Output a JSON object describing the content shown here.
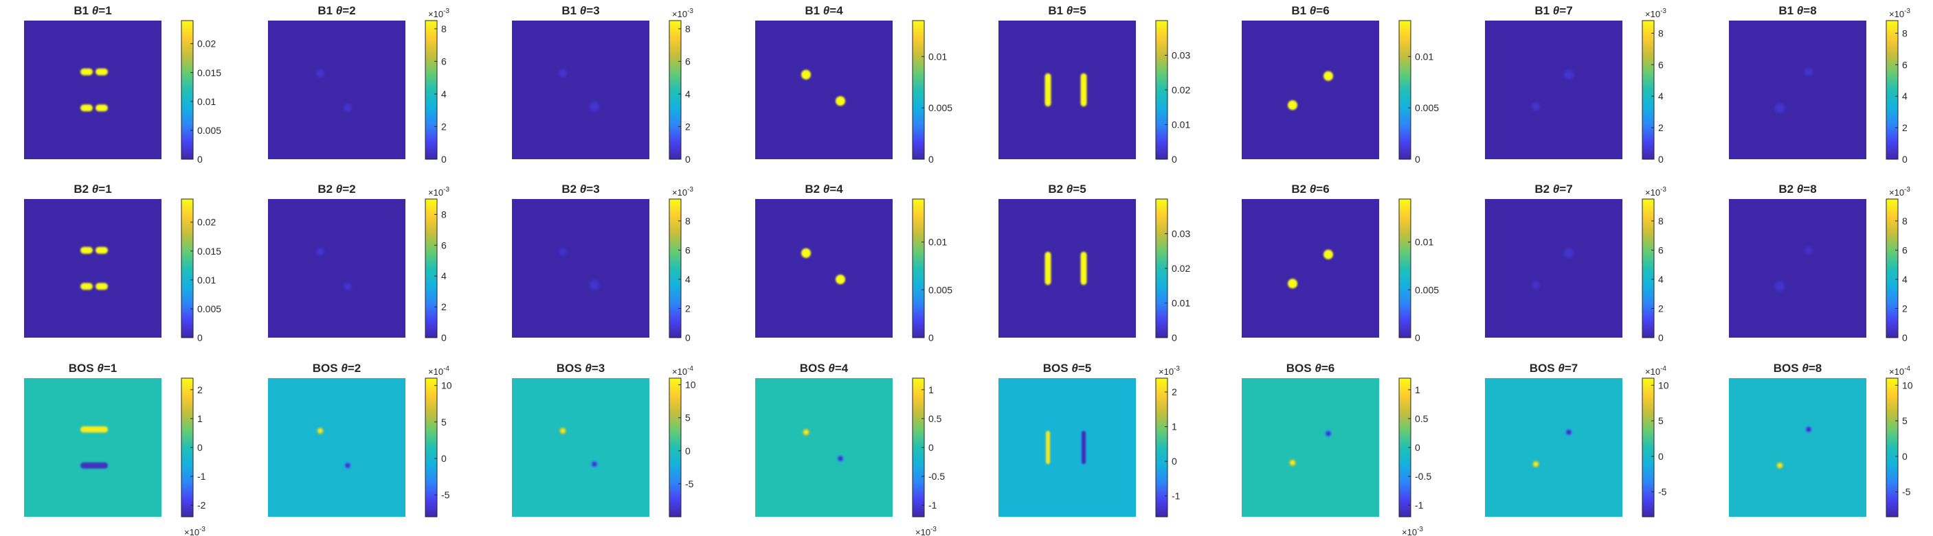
{
  "figure": {
    "colormap": "parula",
    "colormap_stops": [
      "#3E26A8",
      "#4743F3",
      "#2D87F7",
      "#14B1DF",
      "#22C0B3",
      "#6ACB70",
      "#C5BE3B",
      "#FCCC2F",
      "#F9FB15"
    ]
  },
  "chart_data": [
    {
      "type": "heatmap",
      "row": "B1",
      "col": 1,
      "title_prefix": "B1",
      "theta": "=1",
      "clim": [
        0,
        0.024
      ],
      "cticks": [
        "0",
        "0.005",
        "0.01",
        "0.015",
        "0.02"
      ],
      "ctick_values": [
        0,
        0.005,
        0.01,
        0.015,
        0.02
      ],
      "exponent": "",
      "exponent_pos": "top",
      "background_level": 0,
      "features": [
        {
          "kind": "hbar",
          "cx": 0.51,
          "cy": 0.37,
          "w": 0.2,
          "h": 0.05,
          "level": 0.75,
          "segments": 2
        },
        {
          "kind": "hbar",
          "cx": 0.51,
          "cy": 0.63,
          "w": 0.2,
          "h": 0.05,
          "level": 0.75,
          "segments": 2
        }
      ]
    },
    {
      "type": "heatmap",
      "row": "B1",
      "col": 2,
      "title_prefix": "B1",
      "theta": "=2",
      "clim": [
        0,
        8.5
      ],
      "cticks": [
        "0",
        "2",
        "4",
        "6",
        "8"
      ],
      "ctick_values": [
        0,
        2,
        4,
        6,
        8
      ],
      "exponent": "10-3",
      "exponent_pos": "top",
      "background_level": 0,
      "features": [
        {
          "kind": "dot",
          "cx": 0.38,
          "cy": 0.38,
          "r": 0.022,
          "level": 0.55
        },
        {
          "kind": "dot",
          "cx": 0.58,
          "cy": 0.63,
          "r": 0.022,
          "level": 0.55
        }
      ]
    },
    {
      "type": "heatmap",
      "row": "B1",
      "col": 3,
      "title_prefix": "B1",
      "theta": "=3",
      "clim": [
        0,
        8.5
      ],
      "cticks": [
        "0",
        "2",
        "4",
        "6",
        "8"
      ],
      "ctick_values": [
        0,
        2,
        4,
        6,
        8
      ],
      "exponent": "10-3",
      "exponent_pos": "top",
      "background_level": 0,
      "features": [
        {
          "kind": "dot",
          "cx": 0.37,
          "cy": 0.38,
          "r": 0.022,
          "level": 0.55
        },
        {
          "kind": "dot",
          "cx": 0.6,
          "cy": 0.62,
          "r": 0.026,
          "level": 0.6
        }
      ]
    },
    {
      "type": "heatmap",
      "row": "B1",
      "col": 4,
      "title_prefix": "B1",
      "theta": "=4",
      "clim": [
        0,
        0.0135
      ],
      "cticks": [
        "0",
        "0.005",
        "0.01"
      ],
      "ctick_values": [
        0,
        0.005,
        0.01
      ],
      "exponent": "",
      "exponent_pos": "top",
      "background_level": 0,
      "features": [
        {
          "kind": "dot",
          "cx": 0.37,
          "cy": 0.39,
          "r": 0.022,
          "level": 0.55
        },
        {
          "kind": "dot",
          "cx": 0.62,
          "cy": 0.58,
          "r": 0.022,
          "level": 0.55
        }
      ]
    },
    {
      "type": "heatmap",
      "row": "B1",
      "col": 5,
      "title_prefix": "B1",
      "theta": "=5",
      "clim": [
        0,
        0.04
      ],
      "cticks": [
        "0",
        "0.01",
        "0.02",
        "0.03"
      ],
      "ctick_values": [
        0,
        0.01,
        0.02,
        0.03
      ],
      "exponent": "",
      "exponent_pos": "top",
      "background_level": 0,
      "features": [
        {
          "kind": "vbar",
          "cx": 0.36,
          "cy": 0.5,
          "w": 0.045,
          "h": 0.24,
          "level": 0.82
        },
        {
          "kind": "vbar",
          "cx": 0.62,
          "cy": 0.5,
          "w": 0.045,
          "h": 0.24,
          "level": 0.82
        }
      ]
    },
    {
      "type": "heatmap",
      "row": "B1",
      "col": 6,
      "title_prefix": "B1",
      "theta": "=6",
      "clim": [
        0,
        0.0135
      ],
      "cticks": [
        "0",
        "0.005",
        "0.01"
      ],
      "ctick_values": [
        0,
        0.005,
        0.01
      ],
      "exponent": "",
      "exponent_pos": "top",
      "background_level": 0,
      "features": [
        {
          "kind": "dot",
          "cx": 0.37,
          "cy": 0.61,
          "r": 0.022,
          "level": 0.55
        },
        {
          "kind": "dot",
          "cx": 0.63,
          "cy": 0.4,
          "r": 0.022,
          "level": 0.55
        }
      ]
    },
    {
      "type": "heatmap",
      "row": "B1",
      "col": 7,
      "title_prefix": "B1",
      "theta": "=7",
      "clim": [
        0,
        8.8
      ],
      "cticks": [
        "0",
        "2",
        "4",
        "6",
        "8"
      ],
      "ctick_values": [
        0,
        2,
        4,
        6,
        8
      ],
      "exponent": "10-3",
      "exponent_pos": "top",
      "background_level": 0,
      "features": [
        {
          "kind": "dot",
          "cx": 0.37,
          "cy": 0.62,
          "r": 0.022,
          "level": 0.55
        },
        {
          "kind": "dot",
          "cx": 0.61,
          "cy": 0.39,
          "r": 0.026,
          "level": 0.6
        }
      ]
    },
    {
      "type": "heatmap",
      "row": "B1",
      "col": 8,
      "title_prefix": "B1",
      "theta": "=8",
      "clim": [
        0,
        8.8
      ],
      "cticks": [
        "0",
        "2",
        "4",
        "6",
        "8"
      ],
      "ctick_values": [
        0,
        2,
        4,
        6,
        8
      ],
      "exponent": "10-3",
      "exponent_pos": "top",
      "background_level": 0,
      "features": [
        {
          "kind": "dot",
          "cx": 0.37,
          "cy": 0.63,
          "r": 0.026,
          "level": 0.6
        },
        {
          "kind": "dot",
          "cx": 0.58,
          "cy": 0.37,
          "r": 0.022,
          "level": 0.55
        }
      ]
    },
    {
      "type": "heatmap",
      "row": "B2",
      "col": 1,
      "title_prefix": "B2",
      "theta": "=1",
      "clim": [
        0,
        0.024
      ],
      "cticks": [
        "0",
        "0.005",
        "0.01",
        "0.015",
        "0.02"
      ],
      "ctick_values": [
        0,
        0.005,
        0.01,
        0.015,
        0.02
      ],
      "exponent": "",
      "exponent_pos": "top",
      "background_level": 0,
      "features": [
        {
          "kind": "hbar",
          "cx": 0.51,
          "cy": 0.37,
          "w": 0.2,
          "h": 0.05,
          "level": 0.75,
          "segments": 2
        },
        {
          "kind": "hbar",
          "cx": 0.51,
          "cy": 0.63,
          "w": 0.2,
          "h": 0.05,
          "level": 0.75,
          "segments": 2
        }
      ]
    },
    {
      "type": "heatmap",
      "row": "B2",
      "col": 2,
      "title_prefix": "B2",
      "theta": "=2",
      "clim": [
        0,
        9
      ],
      "cticks": [
        "0",
        "2",
        "4",
        "6",
        "8"
      ],
      "ctick_values": [
        0,
        2,
        4,
        6,
        8
      ],
      "exponent": "10-3",
      "exponent_pos": "top",
      "background_level": 0,
      "features": [
        {
          "kind": "dot",
          "cx": 0.38,
          "cy": 0.38,
          "r": 0.022,
          "level": 0.55
        },
        {
          "kind": "dot",
          "cx": 0.58,
          "cy": 0.63,
          "r": 0.022,
          "level": 0.55
        }
      ]
    },
    {
      "type": "heatmap",
      "row": "B2",
      "col": 3,
      "title_prefix": "B2",
      "theta": "=3",
      "clim": [
        0,
        9.5
      ],
      "cticks": [
        "0",
        "2",
        "4",
        "6",
        "8"
      ],
      "ctick_values": [
        0,
        2,
        4,
        6,
        8
      ],
      "exponent": "10-3",
      "exponent_pos": "top",
      "background_level": 0,
      "features": [
        {
          "kind": "dot",
          "cx": 0.37,
          "cy": 0.38,
          "r": 0.022,
          "level": 0.55
        },
        {
          "kind": "dot",
          "cx": 0.6,
          "cy": 0.62,
          "r": 0.026,
          "level": 0.6
        }
      ]
    },
    {
      "type": "heatmap",
      "row": "B2",
      "col": 4,
      "title_prefix": "B2",
      "theta": "=4",
      "clim": [
        0,
        0.0145
      ],
      "cticks": [
        "0",
        "0.005",
        "0.01"
      ],
      "ctick_values": [
        0,
        0.005,
        0.01
      ],
      "exponent": "",
      "exponent_pos": "top",
      "background_level": 0,
      "features": [
        {
          "kind": "dot",
          "cx": 0.37,
          "cy": 0.39,
          "r": 0.022,
          "level": 0.55
        },
        {
          "kind": "dot",
          "cx": 0.62,
          "cy": 0.58,
          "r": 0.022,
          "level": 0.55
        }
      ]
    },
    {
      "type": "heatmap",
      "row": "B2",
      "col": 5,
      "title_prefix": "B2",
      "theta": "=5",
      "clim": [
        0,
        0.04
      ],
      "cticks": [
        "0",
        "0.01",
        "0.02",
        "0.03"
      ],
      "ctick_values": [
        0,
        0.01,
        0.02,
        0.03
      ],
      "exponent": "",
      "exponent_pos": "top",
      "background_level": 0,
      "features": [
        {
          "kind": "vbar",
          "cx": 0.36,
          "cy": 0.5,
          "w": 0.045,
          "h": 0.24,
          "level": 0.82
        },
        {
          "kind": "vbar",
          "cx": 0.62,
          "cy": 0.5,
          "w": 0.045,
          "h": 0.24,
          "level": 0.82
        }
      ]
    },
    {
      "type": "heatmap",
      "row": "B2",
      "col": 6,
      "title_prefix": "B2",
      "theta": "=6",
      "clim": [
        0,
        0.0145
      ],
      "cticks": [
        "0",
        "0.005",
        "0.01"
      ],
      "ctick_values": [
        0,
        0.005,
        0.01
      ],
      "exponent": "",
      "exponent_pos": "top",
      "background_level": 0,
      "features": [
        {
          "kind": "dot",
          "cx": 0.37,
          "cy": 0.61,
          "r": 0.022,
          "level": 0.55
        },
        {
          "kind": "dot",
          "cx": 0.63,
          "cy": 0.4,
          "r": 0.022,
          "level": 0.55
        }
      ]
    },
    {
      "type": "heatmap",
      "row": "B2",
      "col": 7,
      "title_prefix": "B2",
      "theta": "=7",
      "clim": [
        0,
        9.5
      ],
      "cticks": [
        "0",
        "2",
        "4",
        "6",
        "8"
      ],
      "ctick_values": [
        0,
        2,
        4,
        6,
        8
      ],
      "exponent": "10-3",
      "exponent_pos": "top",
      "background_level": 0,
      "features": [
        {
          "kind": "dot",
          "cx": 0.37,
          "cy": 0.62,
          "r": 0.022,
          "level": 0.55
        },
        {
          "kind": "dot",
          "cx": 0.61,
          "cy": 0.39,
          "r": 0.026,
          "level": 0.6
        }
      ]
    },
    {
      "type": "heatmap",
      "row": "B2",
      "col": 8,
      "title_prefix": "B2",
      "theta": "=8",
      "clim": [
        0,
        9.5
      ],
      "cticks": [
        "0",
        "2",
        "4",
        "6",
        "8"
      ],
      "ctick_values": [
        0,
        2,
        4,
        6,
        8
      ],
      "exponent": "10-3",
      "exponent_pos": "top",
      "background_level": 0,
      "features": [
        {
          "kind": "dot",
          "cx": 0.37,
          "cy": 0.63,
          "r": 0.026,
          "level": 0.6
        },
        {
          "kind": "dot",
          "cx": 0.58,
          "cy": 0.37,
          "r": 0.022,
          "level": 0.55
        }
      ]
    },
    {
      "type": "heatmap",
      "row": "BOS",
      "col": 1,
      "title_prefix": "BOS",
      "theta": "=1",
      "clim": [
        -2.4,
        2.4
      ],
      "cticks": [
        "-2",
        "-1",
        "0",
        "1",
        "2"
      ],
      "ctick_values": [
        -2,
        -1,
        0,
        1,
        2
      ],
      "exponent": "10-3",
      "exponent_pos": "bottom",
      "background_level": 0,
      "features": [
        {
          "kind": "hbar",
          "cx": 0.51,
          "cy": 0.37,
          "w": 0.2,
          "h": 0.045,
          "level": 2.2,
          "segments": 1
        },
        {
          "kind": "hbar",
          "cx": 0.51,
          "cy": 0.63,
          "w": 0.2,
          "h": 0.045,
          "level": -2.2,
          "segments": 1
        }
      ]
    },
    {
      "type": "heatmap",
      "row": "BOS",
      "col": 2,
      "title_prefix": "BOS",
      "theta": "=2",
      "clim": [
        -8,
        11
      ],
      "cticks": [
        "-5",
        "0",
        "5",
        "10"
      ],
      "ctick_values": [
        -5,
        0,
        5,
        10
      ],
      "exponent": "10-4",
      "exponent_pos": "top",
      "background_level": 0,
      "features": [
        {
          "kind": "dot",
          "cx": 0.38,
          "cy": 0.38,
          "r": 0.016,
          "level": 10
        },
        {
          "kind": "dot",
          "cx": 0.58,
          "cy": 0.63,
          "r": 0.016,
          "level": -7
        }
      ]
    },
    {
      "type": "heatmap",
      "row": "BOS",
      "col": 3,
      "title_prefix": "BOS",
      "theta": "=3",
      "clim": [
        -10,
        11
      ],
      "cticks": [
        "-5",
        "0",
        "5",
        "10"
      ],
      "ctick_values": [
        -5,
        0,
        5,
        10
      ],
      "exponent": "10-4",
      "exponent_pos": "top",
      "background_level": 0,
      "features": [
        {
          "kind": "dot",
          "cx": 0.37,
          "cy": 0.38,
          "r": 0.016,
          "level": 10
        },
        {
          "kind": "dot",
          "cx": 0.6,
          "cy": 0.62,
          "r": 0.016,
          "level": -9
        }
      ]
    },
    {
      "type": "heatmap",
      "row": "BOS",
      "col": 4,
      "title_prefix": "BOS",
      "theta": "=4",
      "clim": [
        -1.2,
        1.2
      ],
      "cticks": [
        "-1",
        "-0.5",
        "0",
        "0.5",
        "1"
      ],
      "ctick_values": [
        -1,
        -0.5,
        0,
        0.5,
        1
      ],
      "exponent": "10-3",
      "exponent_pos": "bottom",
      "background_level": 0,
      "features": [
        {
          "kind": "dot",
          "cx": 0.37,
          "cy": 0.39,
          "r": 0.016,
          "level": 1.1
        },
        {
          "kind": "dot",
          "cx": 0.62,
          "cy": 0.58,
          "r": 0.016,
          "level": -1.1
        }
      ]
    },
    {
      "type": "heatmap",
      "row": "BOS",
      "col": 5,
      "title_prefix": "BOS",
      "theta": "=5",
      "clim": [
        -1.6,
        2.4
      ],
      "cticks": [
        "-1",
        "0",
        "1",
        "2"
      ],
      "ctick_values": [
        -1,
        0,
        1,
        2
      ],
      "exponent": "10-3",
      "exponent_pos": "top",
      "background_level": 0,
      "features": [
        {
          "kind": "vbar",
          "cx": 0.36,
          "cy": 0.5,
          "w": 0.03,
          "h": 0.24,
          "level": 2.2
        },
        {
          "kind": "vbar",
          "cx": 0.62,
          "cy": 0.5,
          "w": 0.03,
          "h": 0.24,
          "level": -1.5
        }
      ]
    },
    {
      "type": "heatmap",
      "row": "BOS",
      "col": 6,
      "title_prefix": "BOS",
      "theta": "=6",
      "clim": [
        -1.2,
        1.2
      ],
      "cticks": [
        "-1",
        "-0.5",
        "0",
        "0.5",
        "1"
      ],
      "ctick_values": [
        -1,
        -0.5,
        0,
        0.5,
        1
      ],
      "exponent": "10-3",
      "exponent_pos": "bottom",
      "background_level": 0,
      "features": [
        {
          "kind": "dot",
          "cx": 0.37,
          "cy": 0.61,
          "r": 0.016,
          "level": 1.1
        },
        {
          "kind": "dot",
          "cx": 0.63,
          "cy": 0.4,
          "r": 0.016,
          "level": -1.1
        }
      ]
    },
    {
      "type": "heatmap",
      "row": "BOS",
      "col": 7,
      "title_prefix": "BOS",
      "theta": "=7",
      "clim": [
        -8.5,
        11
      ],
      "cticks": [
        "-5",
        "0",
        "5",
        "10"
      ],
      "ctick_values": [
        -5,
        0,
        5,
        10
      ],
      "exponent": "10-4",
      "exponent_pos": "top",
      "background_level": 0,
      "features": [
        {
          "kind": "dot",
          "cx": 0.37,
          "cy": 0.62,
          "r": 0.016,
          "level": 10
        },
        {
          "kind": "dot",
          "cx": 0.61,
          "cy": 0.39,
          "r": 0.016,
          "level": -8
        }
      ]
    },
    {
      "type": "heatmap",
      "row": "BOS",
      "col": 8,
      "title_prefix": "BOS",
      "theta": "=8",
      "clim": [
        -8.5,
        11
      ],
      "cticks": [
        "-5",
        "0",
        "5",
        "10"
      ],
      "ctick_values": [
        -5,
        0,
        5,
        10
      ],
      "exponent": "10-4",
      "exponent_pos": "top",
      "background_level": 0,
      "features": [
        {
          "kind": "dot",
          "cx": 0.37,
          "cy": 0.63,
          "r": 0.016,
          "level": 10
        },
        {
          "kind": "dot",
          "cx": 0.58,
          "cy": 0.37,
          "r": 0.016,
          "level": -8
        }
      ]
    }
  ]
}
